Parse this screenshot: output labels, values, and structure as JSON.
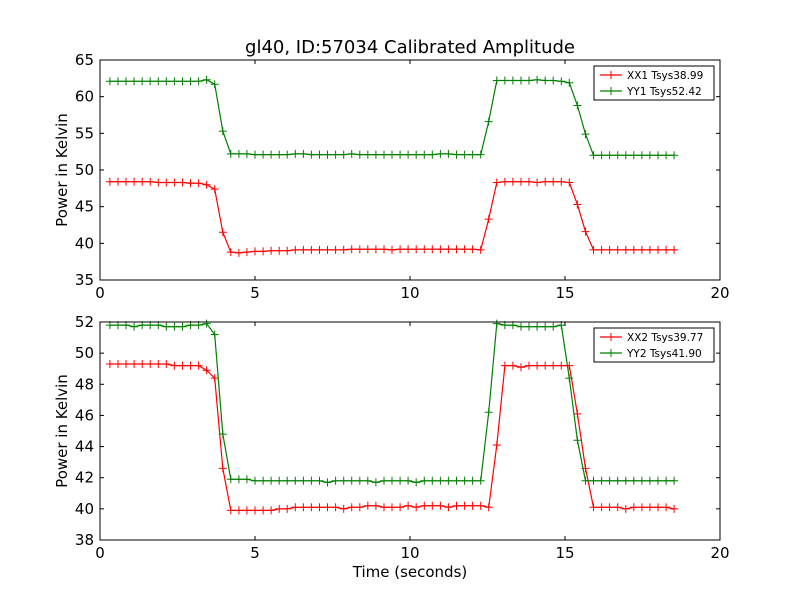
{
  "figure": {
    "title": "gl40, ID:57034 Calibrated Amplitude"
  },
  "chart_data": [
    {
      "type": "line",
      "title": "gl40, ID:57034 Calibrated Amplitude",
      "xlabel": "",
      "ylabel": "Power in Kelvin",
      "xlim": [
        0,
        20
      ],
      "ylim": [
        35,
        65
      ],
      "xticks": [
        0,
        5,
        10,
        15,
        20
      ],
      "yticks": [
        35,
        40,
        45,
        50,
        55,
        60,
        65
      ],
      "grid": false,
      "legend_position": "top-right",
      "x": [
        0.32,
        0.58,
        0.84,
        1.1,
        1.36,
        1.62,
        1.88,
        2.14,
        2.4,
        2.66,
        2.92,
        3.18,
        3.44,
        3.7,
        3.96,
        4.22,
        4.48,
        4.74,
        5.0,
        5.26,
        5.52,
        5.78,
        6.04,
        6.3,
        6.56,
        6.82,
        7.08,
        7.34,
        7.6,
        7.86,
        8.12,
        8.38,
        8.64,
        8.9,
        9.16,
        9.42,
        9.68,
        9.94,
        10.2,
        10.46,
        10.72,
        10.98,
        11.24,
        11.5,
        11.76,
        12.02,
        12.28,
        12.54,
        12.8,
        13.06,
        13.32,
        13.58,
        13.84,
        14.1,
        14.36,
        14.62,
        14.88,
        15.14,
        15.4,
        15.66,
        15.92,
        16.18,
        16.44,
        16.7,
        16.96,
        17.22,
        17.48,
        17.74,
        18.0,
        18.26,
        18.52
      ],
      "series": [
        {
          "name": "XX1 Tsys38.99",
          "color": "#ff0000",
          "values": [
            48.4,
            48.4,
            48.4,
            48.4,
            48.4,
            48.4,
            48.3,
            48.3,
            48.3,
            48.3,
            48.2,
            48.2,
            48.0,
            47.4,
            41.5,
            38.8,
            38.7,
            38.8,
            38.9,
            38.9,
            39.0,
            39.0,
            39.0,
            39.1,
            39.1,
            39.1,
            39.1,
            39.1,
            39.1,
            39.1,
            39.2,
            39.2,
            39.2,
            39.2,
            39.2,
            39.1,
            39.2,
            39.2,
            39.2,
            39.2,
            39.2,
            39.2,
            39.2,
            39.2,
            39.2,
            39.2,
            39.1,
            43.3,
            48.3,
            48.4,
            48.4,
            48.4,
            48.4,
            48.3,
            48.4,
            48.4,
            48.4,
            48.3,
            45.3,
            41.6,
            39.1,
            39.1,
            39.1,
            39.1,
            39.1,
            39.1,
            39.1,
            39.1,
            39.1,
            39.1,
            39.1
          ]
        },
        {
          "name": "YY1 Tsys52.42",
          "color": "#008000",
          "values": [
            62.1,
            62.1,
            62.1,
            62.1,
            62.1,
            62.1,
            62.1,
            62.1,
            62.1,
            62.1,
            62.1,
            62.1,
            62.3,
            61.7,
            55.3,
            52.2,
            52.2,
            52.2,
            52.1,
            52.1,
            52.1,
            52.1,
            52.1,
            52.2,
            52.2,
            52.1,
            52.1,
            52.1,
            52.1,
            52.1,
            52.2,
            52.1,
            52.1,
            52.1,
            52.1,
            52.1,
            52.1,
            52.1,
            52.1,
            52.1,
            52.1,
            52.2,
            52.2,
            52.1,
            52.1,
            52.1,
            52.1,
            56.6,
            62.2,
            62.2,
            62.2,
            62.2,
            62.2,
            62.3,
            62.2,
            62.2,
            62.1,
            61.9,
            58.8,
            54.9,
            52.0,
            52.0,
            52.0,
            52.0,
            52.0,
            52.0,
            52.0,
            52.0,
            52.0,
            52.0,
            52.0
          ]
        }
      ]
    },
    {
      "type": "line",
      "title": "",
      "xlabel": "Time (seconds)",
      "ylabel": "Power in Kelvin",
      "xlim": [
        0,
        20
      ],
      "ylim": [
        38,
        52
      ],
      "xticks": [
        0,
        5,
        10,
        15,
        20
      ],
      "yticks": [
        38,
        40,
        42,
        44,
        46,
        48,
        50,
        52
      ],
      "grid": false,
      "legend_position": "top-right",
      "x": [
        0.32,
        0.58,
        0.84,
        1.1,
        1.36,
        1.62,
        1.88,
        2.14,
        2.4,
        2.66,
        2.92,
        3.18,
        3.44,
        3.7,
        3.96,
        4.22,
        4.48,
        4.74,
        5.0,
        5.26,
        5.52,
        5.78,
        6.04,
        6.3,
        6.56,
        6.82,
        7.08,
        7.34,
        7.6,
        7.86,
        8.12,
        8.38,
        8.64,
        8.9,
        9.16,
        9.42,
        9.68,
        9.94,
        10.2,
        10.46,
        10.72,
        10.98,
        11.24,
        11.5,
        11.76,
        12.02,
        12.28,
        12.54,
        12.8,
        13.06,
        13.32,
        13.58,
        13.84,
        14.1,
        14.36,
        14.62,
        14.88,
        15.14,
        15.4,
        15.66,
        15.92,
        16.18,
        16.44,
        16.7,
        16.96,
        17.22,
        17.48,
        17.74,
        18.0,
        18.26,
        18.52
      ],
      "series": [
        {
          "name": "XX2 Tsys39.77",
          "color": "#ff0000",
          "values": [
            49.3,
            49.3,
            49.3,
            49.3,
            49.3,
            49.3,
            49.3,
            49.3,
            49.2,
            49.2,
            49.2,
            49.2,
            48.9,
            48.4,
            42.6,
            39.9,
            39.9,
            39.9,
            39.9,
            39.9,
            39.9,
            40.0,
            40.0,
            40.1,
            40.1,
            40.1,
            40.1,
            40.1,
            40.1,
            40.0,
            40.1,
            40.1,
            40.2,
            40.2,
            40.1,
            40.1,
            40.1,
            40.2,
            40.1,
            40.2,
            40.2,
            40.2,
            40.1,
            40.2,
            40.2,
            40.2,
            40.2,
            40.1,
            44.1,
            49.2,
            49.2,
            49.1,
            49.2,
            49.2,
            49.2,
            49.2,
            49.2,
            49.2,
            46.1,
            42.6,
            40.1,
            40.1,
            40.1,
            40.1,
            40.0,
            40.1,
            40.1,
            40.1,
            40.1,
            40.1,
            40.0
          ]
        },
        {
          "name": "YY2 Tsys41.90",
          "color": "#008000",
          "values": [
            51.8,
            51.8,
            51.8,
            51.7,
            51.8,
            51.8,
            51.8,
            51.7,
            51.7,
            51.7,
            51.8,
            51.8,
            51.9,
            51.2,
            44.8,
            41.9,
            41.9,
            41.9,
            41.8,
            41.8,
            41.8,
            41.8,
            41.8,
            41.8,
            41.8,
            41.8,
            41.8,
            41.7,
            41.8,
            41.8,
            41.8,
            41.8,
            41.8,
            41.7,
            41.8,
            41.8,
            41.8,
            41.8,
            41.7,
            41.8,
            41.8,
            41.8,
            41.8,
            41.8,
            41.8,
            41.8,
            41.8,
            46.2,
            51.9,
            51.8,
            51.8,
            51.7,
            51.7,
            51.7,
            51.7,
            51.7,
            51.8,
            48.4,
            44.4,
            41.8,
            41.8,
            41.8,
            41.8,
            41.8,
            41.8,
            41.8,
            41.8,
            41.8,
            41.8,
            41.8,
            41.8
          ]
        }
      ]
    }
  ]
}
